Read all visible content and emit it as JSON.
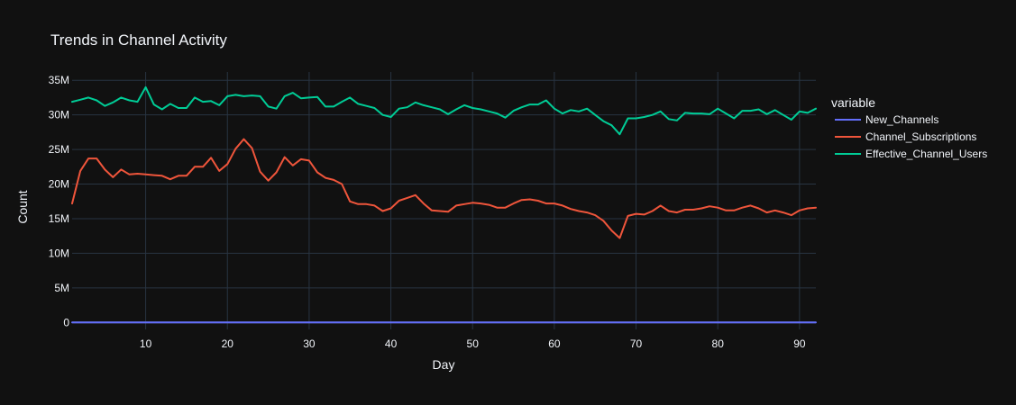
{
  "chart_data": {
    "type": "line",
    "title": "Trends in Channel Activity",
    "xlabel": "Day",
    "ylabel": "Count",
    "xlim": [
      1,
      92
    ],
    "ylim": [
      -1000000,
      36200000
    ],
    "x_ticks": [
      10,
      20,
      30,
      40,
      50,
      60,
      70,
      80,
      90
    ],
    "x_tick_labels": [
      "10",
      "20",
      "30",
      "40",
      "50",
      "60",
      "70",
      "80",
      "90"
    ],
    "y_ticks": [
      0,
      5000000,
      10000000,
      15000000,
      20000000,
      25000000,
      30000000,
      35000000
    ],
    "y_tick_labels": [
      "0",
      "5M",
      "10M",
      "15M",
      "20M",
      "25M",
      "30M",
      "35M"
    ],
    "grid": true,
    "legend": {
      "title": "variable",
      "placement": "right"
    },
    "background": "#111111",
    "series": [
      {
        "name": "New_Channels",
        "color": "#636efa",
        "x_start": 1,
        "values": [
          20000,
          20000,
          20000,
          20000,
          20000,
          20000,
          20000,
          20000,
          20000,
          20000,
          20000,
          20000,
          20000,
          20000,
          20000,
          20000,
          20000,
          20000,
          20000,
          20000,
          20000,
          20000,
          20000,
          20000,
          20000,
          20000,
          20000,
          20000,
          20000,
          20000,
          20000,
          20000,
          20000,
          20000,
          20000,
          20000,
          20000,
          20000,
          20000,
          20000,
          20000,
          20000,
          20000,
          20000,
          20000,
          20000,
          20000,
          20000,
          20000,
          20000,
          20000,
          20000,
          20000,
          20000,
          20000,
          20000,
          20000,
          20000,
          20000,
          20000,
          20000,
          20000,
          20000,
          20000,
          20000,
          20000,
          20000,
          20000,
          20000,
          20000,
          20000,
          20000,
          20000,
          20000,
          20000,
          20000,
          20000,
          20000,
          20000,
          20000,
          20000,
          20000,
          20000,
          20000,
          20000,
          20000,
          20000,
          20000,
          20000,
          20000,
          20000,
          20000
        ]
      },
      {
        "name": "Channel_Subscriptions",
        "color": "#ef553b",
        "x_start": 1,
        "values": [
          17200000,
          21900000,
          23700000,
          23700000,
          22100000,
          21000000,
          22100000,
          21400000,
          21500000,
          21400000,
          21300000,
          21200000,
          20700000,
          21200000,
          21200000,
          22500000,
          22500000,
          23800000,
          21900000,
          22900000,
          25100000,
          26500000,
          25200000,
          21800000,
          20500000,
          21700000,
          23900000,
          22700000,
          23600000,
          23400000,
          21700000,
          20900000,
          20600000,
          20000000,
          17500000,
          17100000,
          17100000,
          16900000,
          16100000,
          16500000,
          17600000,
          18000000,
          18400000,
          17200000,
          16200000,
          16100000,
          16000000,
          16900000,
          17100000,
          17300000,
          17200000,
          17000000,
          16600000,
          16600000,
          17200000,
          17700000,
          17800000,
          17600000,
          17200000,
          17200000,
          16900000,
          16400000,
          16100000,
          15900000,
          15500000,
          14700000,
          13300000,
          12200000,
          15400000,
          15700000,
          15600000,
          16100000,
          16900000,
          16100000,
          15900000,
          16300000,
          16300000,
          16500000,
          16800000,
          16600000,
          16200000,
          16200000,
          16600000,
          16900000,
          16500000,
          15900000,
          16200000,
          15900000,
          15500000,
          16200000,
          16500000,
          16600000
        ]
      },
      {
        "name": "Effective_Channel_Users",
        "color": "#00cc96",
        "x_start": 1,
        "values": [
          31900000,
          32200000,
          32500000,
          32100000,
          31300000,
          31800000,
          32500000,
          32100000,
          31900000,
          34000000,
          31500000,
          30800000,
          31600000,
          31000000,
          31000000,
          32500000,
          31900000,
          32000000,
          31400000,
          32700000,
          32900000,
          32700000,
          32800000,
          32700000,
          31200000,
          30900000,
          32700000,
          33200000,
          32400000,
          32500000,
          32600000,
          31200000,
          31200000,
          31900000,
          32500000,
          31600000,
          31300000,
          31000000,
          30000000,
          29700000,
          30900000,
          31100000,
          31800000,
          31400000,
          31100000,
          30800000,
          30100000,
          30800000,
          31400000,
          31000000,
          30800000,
          30500000,
          30200000,
          29600000,
          30600000,
          31100000,
          31500000,
          31500000,
          32100000,
          30900000,
          30200000,
          30700000,
          30500000,
          30900000,
          30000000,
          29100000,
          28500000,
          27200000,
          29500000,
          29500000,
          29700000,
          30000000,
          30500000,
          29400000,
          29200000,
          30300000,
          30200000,
          30200000,
          30100000,
          30900000,
          30200000,
          29500000,
          30600000,
          30600000,
          30800000,
          30100000,
          30700000,
          30000000,
          29300000,
          30500000,
          30300000,
          30900000
        ]
      }
    ]
  }
}
